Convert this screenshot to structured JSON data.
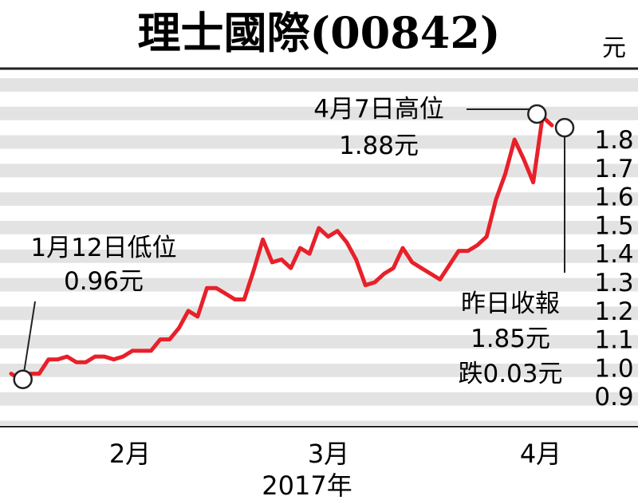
{
  "chart_data": {
    "type": "line",
    "title": "理士國際(00842)",
    "unit": "元",
    "xlabel": "2017年",
    "month_labels": [
      "2月",
      "3月",
      "4月"
    ],
    "y_ticks": [
      "1.8",
      "1.7",
      "1.6",
      "1.5",
      "1.4",
      "1.3",
      "1.2",
      "1.1",
      "1.0",
      "0.9"
    ],
    "ylim": [
      0.9,
      1.8
    ],
    "grid": "horizontal bands",
    "line_color": "#e8202a",
    "series": [
      {
        "values": [
          0.98,
          0.96,
          0.98,
          0.98,
          1.03,
          1.03,
          1.04,
          1.02,
          1.02,
          1.04,
          1.04,
          1.03,
          1.04,
          1.06,
          1.06,
          1.06,
          1.1,
          1.1,
          1.14,
          1.2,
          1.18,
          1.28,
          1.28,
          1.26,
          1.24,
          1.24,
          1.34,
          1.45,
          1.37,
          1.38,
          1.35,
          1.42,
          1.4,
          1.49,
          1.46,
          1.48,
          1.44,
          1.38,
          1.29,
          1.3,
          1.33,
          1.35,
          1.42,
          1.37,
          1.35,
          1.33,
          1.31,
          1.36,
          1.41,
          1.41,
          1.43,
          1.46,
          1.59,
          1.68,
          1.8,
          1.73,
          1.65,
          1.88,
          1.85
        ]
      }
    ],
    "annotations": [
      {
        "lines": [
          "1月12日低位",
          "0.96元"
        ]
      },
      {
        "lines": [
          "4月7日高位",
          "1.88元"
        ]
      },
      {
        "lines": [
          "昨日收報",
          "1.85元",
          "跌0.03元"
        ]
      }
    ]
  }
}
